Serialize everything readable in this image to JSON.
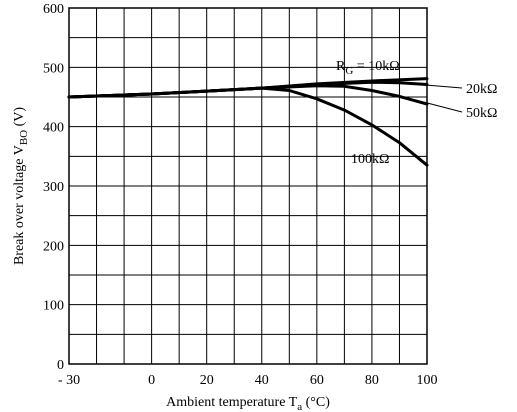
{
  "chart_data": {
    "type": "line",
    "xlabel": "Ambient temperature T a (°C)",
    "ylabel": "Break over voltage V BO (V)",
    "xlim": [
      -30,
      100
    ],
    "ylim": [
      0,
      600
    ],
    "x_ticks": [
      -30,
      0,
      20,
      40,
      60,
      80,
      100
    ],
    "x_tick_labels": [
      "- 30",
      "0",
      "20",
      "40",
      "60",
      "80",
      "100"
    ],
    "y_ticks": [
      0,
      100,
      200,
      300,
      400,
      500,
      600
    ],
    "y_tick_labels": [
      "0",
      "100",
      "200",
      "300",
      "400",
      "500",
      "600"
    ],
    "grid": true,
    "series": [
      {
        "name": "R G = 10kΩ",
        "points": [
          [
            -30,
            450
          ],
          [
            0,
            455
          ],
          [
            20,
            460
          ],
          [
            40,
            465
          ],
          [
            60,
            472
          ],
          [
            80,
            477
          ],
          [
            100,
            481
          ]
        ]
      },
      {
        "name": "20kΩ",
        "points": [
          [
            -30,
            450
          ],
          [
            0,
            455
          ],
          [
            20,
            460
          ],
          [
            40,
            465
          ],
          [
            60,
            471
          ],
          [
            70,
            473
          ],
          [
            80,
            475
          ],
          [
            90,
            474
          ],
          [
            100,
            471
          ]
        ]
      },
      {
        "name": "50kΩ",
        "points": [
          [
            -30,
            450
          ],
          [
            0,
            455
          ],
          [
            20,
            460
          ],
          [
            40,
            465
          ],
          [
            60,
            469
          ],
          [
            70,
            468
          ],
          [
            80,
            461
          ],
          [
            90,
            451
          ],
          [
            100,
            438
          ]
        ]
      },
      {
        "name": "100kΩ",
        "points": [
          [
            -30,
            450
          ],
          [
            0,
            455
          ],
          [
            20,
            460
          ],
          [
            40,
            465
          ],
          [
            50,
            461
          ],
          [
            60,
            447
          ],
          [
            70,
            428
          ],
          [
            80,
            403
          ],
          [
            90,
            373
          ],
          [
            100,
            335
          ]
        ]
      }
    ],
    "annotations": {
      "rg_prefix": "R",
      "rg_sub": "G",
      "rg_rest": " = 10kΩ",
      "label_20k": "20kΩ",
      "label_50k": "50kΩ",
      "label_100k": "100kΩ"
    },
    "axis_text": {
      "x_main": "Ambient temperature T",
      "x_sub": "a",
      "x_unit": " (°C)",
      "y_main": "Break over voltage V",
      "y_sub": "BO",
      "y_unit": " (V)"
    }
  }
}
